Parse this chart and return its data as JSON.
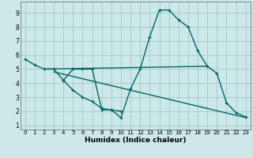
{
  "xlabel": "Humidex (Indice chaleur)",
  "bg_color": "#cce8e8",
  "grid_color": "#aacccc",
  "line_color": "#006666",
  "line1_x": [
    0,
    1,
    2,
    3,
    4,
    5,
    6,
    7,
    8,
    9,
    10,
    11,
    12,
    13,
    14,
    15,
    16,
    17,
    18,
    19,
    20,
    21,
    22,
    23
  ],
  "line1_y": [
    5.7,
    5.3,
    5.0,
    5.0,
    4.2,
    5.0,
    5.0,
    5.0,
    2.1,
    2.1,
    1.55,
    3.6,
    5.0,
    7.3,
    9.2,
    9.2,
    8.5,
    8.0,
    6.3,
    5.2,
    4.7,
    2.6,
    1.9,
    1.6
  ],
  "line2_x": [
    2,
    19
  ],
  "line2_y": [
    5.0,
    5.2
  ],
  "line3_x": [
    3,
    23
  ],
  "line3_y": [
    4.8,
    1.55
  ],
  "line4_x": [
    4,
    5,
    6,
    7,
    8,
    9,
    10
  ],
  "line4_y": [
    4.2,
    3.5,
    3.0,
    2.7,
    2.2,
    2.1,
    2.0
  ],
  "xlim": [
    -0.5,
    23.5
  ],
  "ylim": [
    0.7,
    9.8
  ],
  "yticks": [
    1,
    2,
    3,
    4,
    5,
    6,
    7,
    8,
    9
  ],
  "xticks": [
    0,
    1,
    2,
    3,
    4,
    5,
    6,
    7,
    8,
    9,
    10,
    11,
    12,
    13,
    14,
    15,
    16,
    17,
    18,
    19,
    20,
    21,
    22,
    23
  ]
}
